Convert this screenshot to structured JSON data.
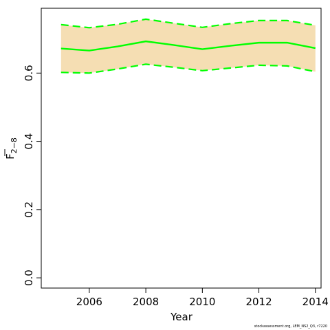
{
  "chart_data": {
    "type": "line",
    "title": "",
    "xlabel": "Year",
    "ylabel_main": "F",
    "ylabel_sub": "2−8",
    "x": [
      2005,
      2006,
      2007,
      2008,
      2009,
      2010,
      2011,
      2012,
      2013,
      2014
    ],
    "xlim": [
      2004.3,
      2014.2
    ],
    "ylim": [
      -0.03,
      0.79
    ],
    "x_ticks": [
      2006,
      2008,
      2010,
      2012,
      2014
    ],
    "x_tick_labels": [
      "2006",
      "2008",
      "2010",
      "2012",
      "2014"
    ],
    "y_ticks": [
      0.0,
      0.2,
      0.4,
      0.6
    ],
    "y_tick_labels": [
      "0.0",
      "0.2",
      "0.4",
      "0.6"
    ],
    "grid": false,
    "series": [
      {
        "role": "estimate",
        "values": [
          0.672,
          0.666,
          0.678,
          0.693,
          0.682,
          0.67,
          0.68,
          0.689,
          0.689,
          0.673
        ]
      },
      {
        "role": "upper",
        "values": [
          0.742,
          0.733,
          0.743,
          0.758,
          0.746,
          0.734,
          0.745,
          0.754,
          0.754,
          0.74
        ]
      },
      {
        "role": "lower",
        "values": [
          0.602,
          0.6,
          0.612,
          0.626,
          0.617,
          0.607,
          0.615,
          0.623,
          0.621,
          0.604
        ]
      }
    ],
    "colors": {
      "band": "#F5DEB3",
      "line": "#00FF00",
      "axis": "#000000"
    }
  },
  "footnote": "stockassessment.org, LEM_NS2_Q3, r7220"
}
